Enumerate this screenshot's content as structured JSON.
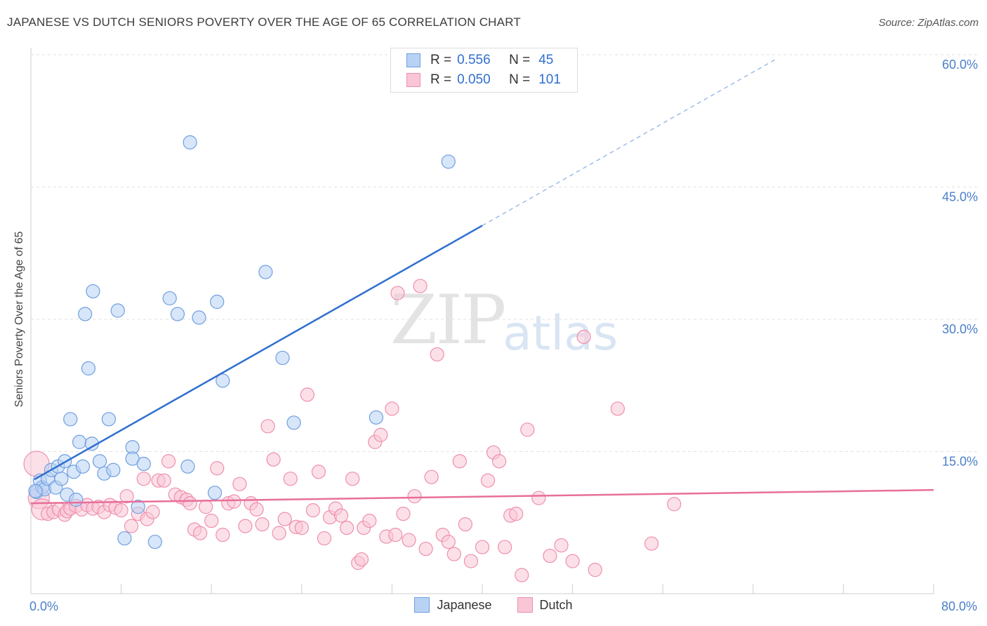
{
  "title": "JAPANESE VS DUTCH SENIORS POVERTY OVER THE AGE OF 65 CORRELATION CHART",
  "source": "Source: ZipAtlas.com",
  "watermark": {
    "zip": "ZIP",
    "atlas": "atlas"
  },
  "stats": [
    {
      "r_label": "R =",
      "r_value": "0.556",
      "n_label": "N =",
      "n_value": "45",
      "fill": "#b8d2f4",
      "stroke": "#6f9fe0"
    },
    {
      "r_label": "R =",
      "r_value": "0.050",
      "n_label": "N =",
      "n_value": "101",
      "fill": "#f9c6d5",
      "stroke": "#ee8fae"
    }
  ],
  "legend": [
    {
      "label": "Japanese",
      "fill": "#b8d2f4",
      "stroke": "#6f9fe0"
    },
    {
      "label": "Dutch",
      "fill": "#f9c6d5",
      "stroke": "#ee8fae"
    }
  ],
  "chart_data": {
    "type": "scatter",
    "title": "JAPANESE VS DUTCH SENIORS POVERTY OVER THE AGE OF 65 CORRELATION CHART",
    "xlabel": "",
    "ylabel": "Seniors Poverty Over the Age of 65",
    "xlim": [
      0,
      80
    ],
    "ylim": [
      0,
      60
    ],
    "x_tick_labels": [
      {
        "value": 0,
        "label": "0.0%"
      },
      {
        "value": 80,
        "label": "80.0%"
      }
    ],
    "y_tick_labels": [
      {
        "value": 15,
        "label": "15.0%"
      },
      {
        "value": 30,
        "label": "30.0%"
      },
      {
        "value": 45,
        "label": "45.0%"
      },
      {
        "value": 60,
        "label": "60.0%"
      }
    ],
    "legend_position": "bottom",
    "grid": true,
    "series": [
      {
        "name": "Japanese",
        "color": "#6f9fe0",
        "fill": "#b8d2f4",
        "line_color": "#2f6fd0",
        "trend": {
          "x_solid": [
            0.3,
            40
          ],
          "x_dashed": [
            40,
            66
          ],
          "intercept": 11.7,
          "slope": 0.73
        },
        "points": [
          [
            0.5,
            10.5
          ],
          [
            0.8,
            11.8
          ],
          [
            1.0,
            11.0
          ],
          [
            1.2,
            10.8
          ],
          [
            1.5,
            12.0
          ],
          [
            1.8,
            13.0
          ],
          [
            2.2,
            11.0
          ],
          [
            2.4,
            13.4
          ],
          [
            2.7,
            12.0
          ],
          [
            3.0,
            14.0
          ],
          [
            3.2,
            10.2
          ],
          [
            3.5,
            18.8
          ],
          [
            3.8,
            12.8
          ],
          [
            4.0,
            9.6
          ],
          [
            4.3,
            16.2
          ],
          [
            4.6,
            13.4
          ],
          [
            4.8,
            30.8
          ],
          [
            5.1,
            24.6
          ],
          [
            5.4,
            16.0
          ],
          [
            5.5,
            33.4
          ],
          [
            6.1,
            14.0
          ],
          [
            6.5,
            12.6
          ],
          [
            6.9,
            18.8
          ],
          [
            7.3,
            13.0
          ],
          [
            7.7,
            31.2
          ],
          [
            8.3,
            5.2
          ],
          [
            9.0,
            15.6
          ],
          [
            9.0,
            14.3
          ],
          [
            9.5,
            8.8
          ],
          [
            10.0,
            13.7
          ],
          [
            11.0,
            4.8
          ],
          [
            12.3,
            32.6
          ],
          [
            13.0,
            30.8
          ],
          [
            13.9,
            13.4
          ],
          [
            14.1,
            50.4
          ],
          [
            14.9,
            30.4
          ],
          [
            16.3,
            10.4
          ],
          [
            16.5,
            32.2
          ],
          [
            17.0,
            23.2
          ],
          [
            20.8,
            35.6
          ],
          [
            22.3,
            25.8
          ],
          [
            23.3,
            18.4
          ],
          [
            30.6,
            19.0
          ],
          [
            37.0,
            48.2
          ],
          [
            0.4,
            10.6
          ]
        ]
      },
      {
        "name": "Dutch",
        "color": "#ee8fae",
        "fill": "#f9c6d5",
        "line_color": "#e86f9a",
        "trend": {
          "x_solid": [
            0,
            80
          ],
          "intercept": 9.2,
          "slope": 0.019
        },
        "points": [
          [
            0.5,
            13.7
          ],
          [
            0.7,
            9.8
          ],
          [
            1.0,
            8.5
          ],
          [
            1.5,
            8.0
          ],
          [
            2.0,
            8.2
          ],
          [
            2.5,
            8.5
          ],
          [
            3.0,
            7.9
          ],
          [
            3.2,
            8.3
          ],
          [
            3.5,
            8.6
          ],
          [
            4.0,
            8.9
          ],
          [
            4.5,
            8.5
          ],
          [
            5.0,
            9.0
          ],
          [
            5.5,
            8.6
          ],
          [
            6.0,
            8.8
          ],
          [
            6.5,
            8.2
          ],
          [
            7.0,
            9.0
          ],
          [
            7.5,
            8.7
          ],
          [
            8.0,
            8.4
          ],
          [
            8.5,
            10.0
          ],
          [
            8.9,
            6.6
          ],
          [
            9.5,
            8.0
          ],
          [
            10.0,
            12.0
          ],
          [
            10.3,
            7.4
          ],
          [
            10.8,
            8.2
          ],
          [
            11.3,
            11.8
          ],
          [
            11.8,
            11.8
          ],
          [
            12.2,
            14.0
          ],
          [
            12.8,
            10.2
          ],
          [
            13.3,
            9.9
          ],
          [
            13.8,
            9.6
          ],
          [
            14.1,
            9.2
          ],
          [
            14.5,
            6.2
          ],
          [
            15.0,
            5.8
          ],
          [
            15.5,
            8.8
          ],
          [
            16.0,
            7.2
          ],
          [
            16.5,
            13.2
          ],
          [
            17.0,
            5.6
          ],
          [
            17.5,
            9.2
          ],
          [
            18.0,
            9.4
          ],
          [
            18.5,
            11.4
          ],
          [
            19.0,
            6.6
          ],
          [
            19.5,
            9.2
          ],
          [
            20.0,
            8.5
          ],
          [
            20.5,
            6.8
          ],
          [
            21.0,
            18.0
          ],
          [
            21.5,
            14.2
          ],
          [
            22.0,
            5.8
          ],
          [
            22.5,
            7.4
          ],
          [
            23.0,
            12.0
          ],
          [
            23.5,
            6.5
          ],
          [
            24.0,
            6.4
          ],
          [
            24.5,
            21.6
          ],
          [
            25.0,
            8.4
          ],
          [
            25.5,
            12.8
          ],
          [
            26.0,
            5.2
          ],
          [
            26.5,
            7.6
          ],
          [
            27.0,
            8.6
          ],
          [
            27.5,
            7.8
          ],
          [
            28.0,
            6.4
          ],
          [
            28.5,
            12.0
          ],
          [
            29.0,
            2.4
          ],
          [
            29.3,
            2.8
          ],
          [
            29.5,
            6.4
          ],
          [
            30.0,
            7.2
          ],
          [
            30.5,
            16.2
          ],
          [
            31.0,
            17.0
          ],
          [
            31.5,
            5.4
          ],
          [
            32.0,
            20.0
          ],
          [
            32.3,
            5.6
          ],
          [
            32.5,
            33.2
          ],
          [
            33.0,
            8.0
          ],
          [
            33.5,
            5.0
          ],
          [
            34.0,
            10.0
          ],
          [
            34.5,
            34.0
          ],
          [
            35.0,
            4.0
          ],
          [
            35.5,
            12.2
          ],
          [
            36.0,
            26.2
          ],
          [
            36.5,
            5.6
          ],
          [
            37.0,
            4.8
          ],
          [
            37.5,
            3.4
          ],
          [
            38.0,
            14.0
          ],
          [
            38.5,
            6.8
          ],
          [
            39.0,
            2.6
          ],
          [
            40.0,
            4.2
          ],
          [
            40.5,
            11.8
          ],
          [
            41.0,
            15.0
          ],
          [
            41.5,
            14.0
          ],
          [
            42.0,
            4.2
          ],
          [
            42.5,
            7.8
          ],
          [
            43.0,
            8.0
          ],
          [
            43.5,
            1.0
          ],
          [
            44.0,
            17.6
          ],
          [
            45.0,
            9.8
          ],
          [
            46.0,
            3.2
          ],
          [
            47.0,
            4.4
          ],
          [
            48.0,
            2.6
          ],
          [
            49.0,
            28.2
          ],
          [
            50.0,
            1.6
          ],
          [
            52.0,
            20.0
          ],
          [
            55.0,
            4.6
          ],
          [
            57.0,
            9.1
          ]
        ]
      }
    ]
  }
}
